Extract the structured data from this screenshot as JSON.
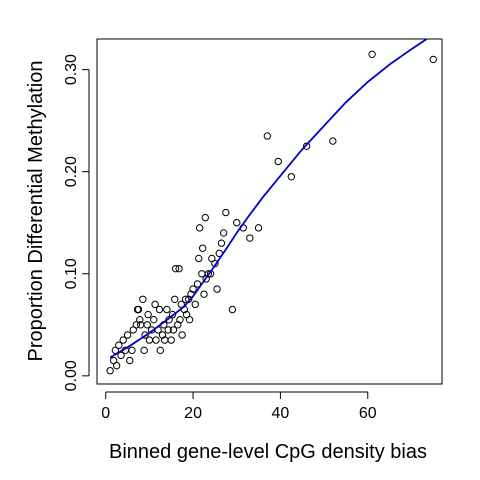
{
  "chart_data": {
    "type": "scatter",
    "title": "",
    "xlabel": "Binned gene-level CpG density bias",
    "ylabel": "Proportion Differential Methylation",
    "xlim": [
      -2,
      77
    ],
    "ylim": [
      -0.008,
      0.33
    ],
    "x_ticks": [
      0,
      20,
      40,
      60
    ],
    "y_ticks": [
      0.0,
      0.1,
      0.2,
      0.3
    ],
    "x_tick_labels": [
      "0",
      "20",
      "40",
      "60"
    ],
    "y_tick_labels": [
      "0.00",
      "0.10",
      "0.20",
      "0.30"
    ],
    "grid": false,
    "legend": "none",
    "point_style": "open-circle",
    "point_color": "#000000",
    "fit_line_color": "#0000cc",
    "points": [
      [
        1.0,
        0.005
      ],
      [
        1.8,
        0.015
      ],
      [
        2.2,
        0.025
      ],
      [
        2.5,
        0.01
      ],
      [
        3.0,
        0.03
      ],
      [
        3.5,
        0.02
      ],
      [
        4.0,
        0.035
      ],
      [
        4.5,
        0.025
      ],
      [
        5.0,
        0.04
      ],
      [
        5.5,
        0.015
      ],
      [
        6.0,
        0.025
      ],
      [
        6.3,
        0.045
      ],
      [
        7.0,
        0.05
      ],
      [
        7.3,
        0.065
      ],
      [
        7.5,
        0.065
      ],
      [
        7.8,
        0.055
      ],
      [
        8.0,
        0.05
      ],
      [
        8.5,
        0.075
      ],
      [
        8.8,
        0.025
      ],
      [
        9.0,
        0.04
      ],
      [
        9.5,
        0.05
      ],
      [
        9.7,
        0.06
      ],
      [
        10.0,
        0.035
      ],
      [
        10.5,
        0.045
      ],
      [
        11.0,
        0.055
      ],
      [
        11.3,
        0.07
      ],
      [
        11.5,
        0.035
      ],
      [
        12.0,
        0.045
      ],
      [
        12.3,
        0.065
      ],
      [
        12.5,
        0.025
      ],
      [
        13.0,
        0.04
      ],
      [
        13.3,
        0.05
      ],
      [
        13.5,
        0.035
      ],
      [
        14.0,
        0.065
      ],
      [
        14.3,
        0.045
      ],
      [
        14.5,
        0.055
      ],
      [
        15.0,
        0.035
      ],
      [
        15.3,
        0.06
      ],
      [
        15.5,
        0.045
      ],
      [
        15.8,
        0.075
      ],
      [
        16.0,
        0.105
      ],
      [
        16.5,
        0.05
      ],
      [
        16.8,
        0.105
      ],
      [
        17.0,
        0.055
      ],
      [
        17.3,
        0.07
      ],
      [
        17.5,
        0.04
      ],
      [
        18.0,
        0.065
      ],
      [
        18.3,
        0.075
      ],
      [
        18.5,
        0.06
      ],
      [
        19.0,
        0.075
      ],
      [
        19.2,
        0.055
      ],
      [
        19.5,
        0.08
      ],
      [
        20.0,
        0.085
      ],
      [
        20.5,
        0.07
      ],
      [
        21.0,
        0.09
      ],
      [
        21.3,
        0.115
      ],
      [
        21.5,
        0.145
      ],
      [
        22.0,
        0.1
      ],
      [
        22.2,
        0.125
      ],
      [
        22.5,
        0.08
      ],
      [
        22.8,
        0.155
      ],
      [
        23.0,
        0.095
      ],
      [
        23.5,
        0.1
      ],
      [
        24.0,
        0.1
      ],
      [
        24.3,
        0.115
      ],
      [
        25.0,
        0.11
      ],
      [
        25.5,
        0.085
      ],
      [
        26.0,
        0.12
      ],
      [
        26.5,
        0.13
      ],
      [
        27.0,
        0.14
      ],
      [
        27.5,
        0.16
      ],
      [
        29.0,
        0.065
      ],
      [
        30.0,
        0.15
      ],
      [
        31.5,
        0.145
      ],
      [
        33.0,
        0.135
      ],
      [
        35.0,
        0.145
      ],
      [
        37.0,
        0.235
      ],
      [
        39.5,
        0.21
      ],
      [
        42.5,
        0.195
      ],
      [
        46.0,
        0.225
      ],
      [
        52.0,
        0.23
      ],
      [
        61.0,
        0.315
      ],
      [
        75.0,
        0.31
      ]
    ],
    "fit_line": [
      [
        1.0,
        0.018
      ],
      [
        5.0,
        0.028
      ],
      [
        10.0,
        0.042
      ],
      [
        15.0,
        0.058
      ],
      [
        18.0,
        0.068
      ],
      [
        20.0,
        0.078
      ],
      [
        22.0,
        0.09
      ],
      [
        25.0,
        0.108
      ],
      [
        28.0,
        0.127
      ],
      [
        30.0,
        0.14
      ],
      [
        33.0,
        0.158
      ],
      [
        36.0,
        0.175
      ],
      [
        40.0,
        0.196
      ],
      [
        45.0,
        0.222
      ],
      [
        50.0,
        0.245
      ],
      [
        55.0,
        0.268
      ],
      [
        60.0,
        0.288
      ],
      [
        65.0,
        0.305
      ],
      [
        70.0,
        0.32
      ],
      [
        73.5,
        0.33
      ]
    ]
  }
}
